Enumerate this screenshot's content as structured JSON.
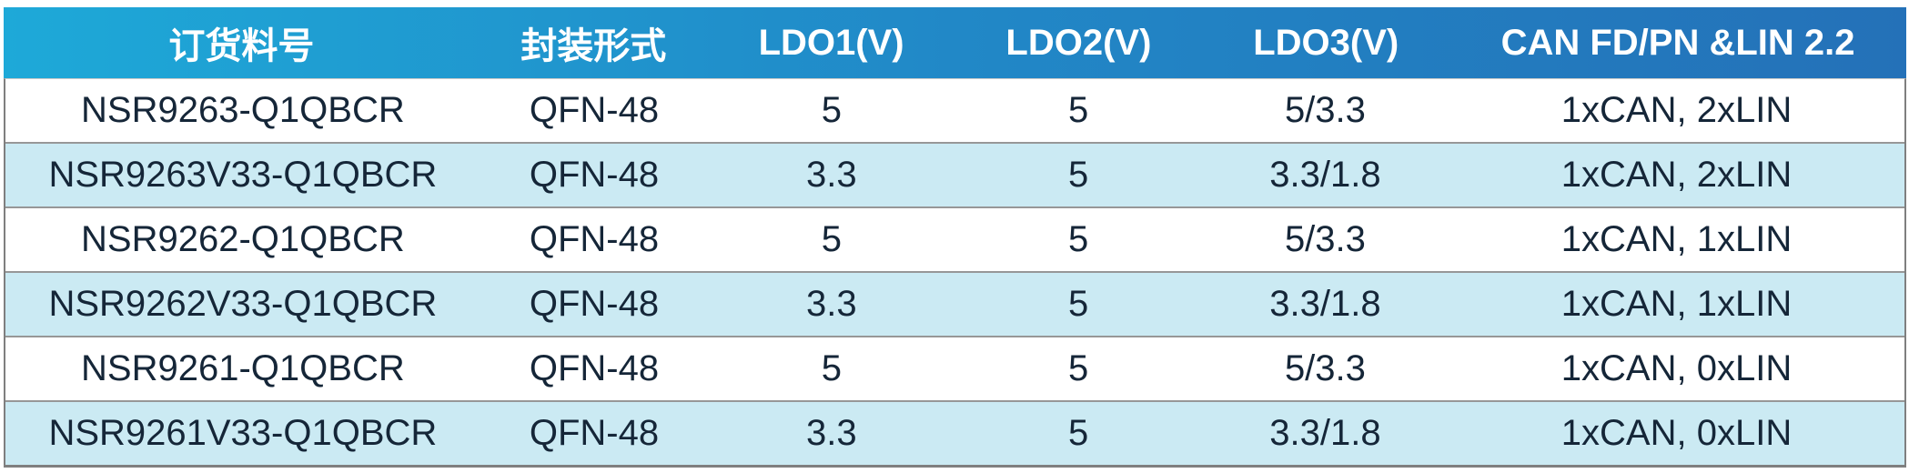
{
  "table": {
    "columns": [
      "订货料号",
      "封装形式",
      "LDO1(V)",
      "LDO2(V)",
      "LDO3(V)",
      "CAN FD/PN &LIN 2.2"
    ],
    "rows": [
      [
        "NSR9263-Q1QBCR",
        "QFN-48",
        "5",
        "5",
        "5/3.3",
        "1xCAN, 2xLIN"
      ],
      [
        "NSR9263V33-Q1QBCR",
        "QFN-48",
        "3.3",
        "5",
        "3.3/1.8",
        "1xCAN, 2xLIN"
      ],
      [
        "NSR9262-Q1QBCR",
        "QFN-48",
        "5",
        "5",
        "5/3.3",
        "1xCAN, 1xLIN"
      ],
      [
        "NSR9262V33-Q1QBCR",
        "QFN-48",
        "3.3",
        "5",
        "3.3/1.8",
        "1xCAN, 1xLIN"
      ],
      [
        "NSR9261-Q1QBCR",
        "QFN-48",
        "5",
        "5",
        "5/3.3",
        "1xCAN, 0xLIN"
      ],
      [
        "NSR9261V33-Q1QBCR",
        "QFN-48",
        "3.3",
        "5",
        "3.3/1.8",
        "1xCAN, 0xLIN"
      ]
    ],
    "colors": {
      "header_gradient_left": "#1ea9d8",
      "header_gradient_right": "#2471b8",
      "header_text": "#ffffff",
      "row_alt_background": "#cbeaf3",
      "row_background": "#ffffff",
      "body_text": "#152638",
      "outer_border": "#7f7f7f",
      "row_separator": "#979797"
    }
  }
}
